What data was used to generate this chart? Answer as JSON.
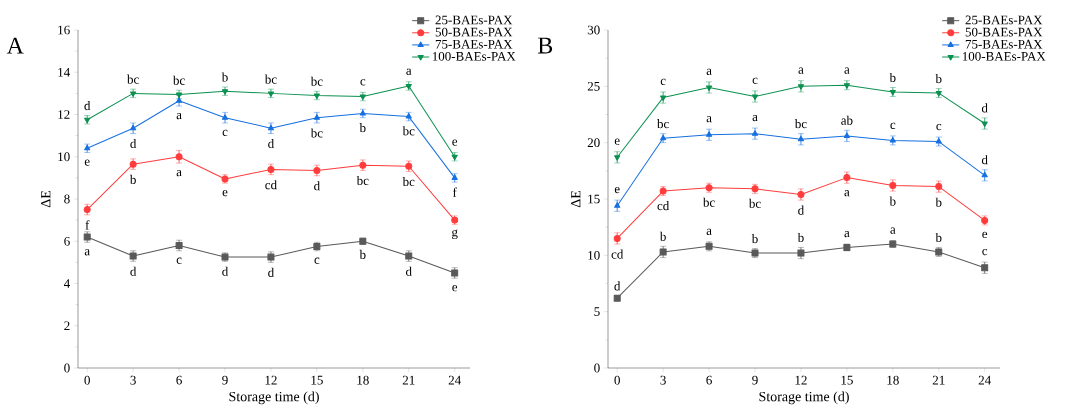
{
  "chart_data": [
    {
      "type": "line",
      "title": "A",
      "xlabel": "Storage time (d)",
      "ylabel": "ΔE",
      "x": [
        0,
        3,
        6,
        9,
        12,
        15,
        18,
        21,
        24
      ],
      "xlim": [
        -0.6,
        25
      ],
      "xticks": [
        0,
        3,
        6,
        9,
        12,
        15,
        18,
        21,
        24
      ],
      "ylim": [
        0,
        16
      ],
      "yticks": [
        0,
        2,
        4,
        6,
        8,
        10,
        12,
        14,
        16
      ],
      "legend": "top right",
      "series": [
        {
          "name": "25-BAEs-PAX",
          "color": "#595959",
          "marker": "square",
          "values": [
            6.2,
            5.3,
            5.8,
            5.25,
            5.25,
            5.75,
            6.0,
            5.3,
            4.5
          ],
          "errors": [
            0.25,
            0.25,
            0.25,
            0.2,
            0.25,
            0.2,
            0.15,
            0.25,
            0.25
          ]
        },
        {
          "name": "50-BAEs-PAX",
          "color": "#ff3b3b",
          "marker": "circle",
          "values": [
            7.5,
            9.65,
            10.0,
            8.95,
            9.4,
            9.35,
            9.6,
            9.55,
            7.0
          ],
          "errors": [
            0.25,
            0.25,
            0.3,
            0.2,
            0.25,
            0.25,
            0.25,
            0.25,
            0.2
          ]
        },
        {
          "name": "75-BAEs-PAX",
          "color": "#1670e0",
          "marker": "triangle",
          "values": [
            10.4,
            11.35,
            12.65,
            11.85,
            11.35,
            11.85,
            12.05,
            11.9,
            9.0
          ],
          "errors": [
            0.2,
            0.25,
            0.25,
            0.25,
            0.25,
            0.25,
            0.2,
            0.2,
            0.2
          ]
        },
        {
          "name": "100-BAEs-PAX",
          "color": "#0c9150",
          "marker": "triangle-down",
          "values": [
            11.75,
            13.0,
            12.95,
            13.1,
            13.0,
            12.9,
            12.85,
            13.35,
            10.0
          ],
          "errors": [
            0.2,
            0.2,
            0.2,
            0.2,
            0.2,
            0.2,
            0.2,
            0.2,
            0.2
          ]
        }
      ],
      "annotations": [
        {
          "text": "a",
          "x": 0,
          "y": 6.2
        },
        {
          "text": "d",
          "x": 3,
          "y": 5.3
        },
        {
          "text": "c",
          "x": 6,
          "y": 5.8
        },
        {
          "text": "d",
          "x": 9,
          "y": 5.25
        },
        {
          "text": "d",
          "x": 12,
          "y": 5.25
        },
        {
          "text": "c",
          "x": 15,
          "y": 5.75
        },
        {
          "text": "b",
          "x": 18,
          "y": 6.0
        },
        {
          "text": "d",
          "x": 21,
          "y": 5.3
        },
        {
          "text": "e",
          "x": 24,
          "y": 4.5
        },
        {
          "text": "f",
          "x": 0,
          "y": 7.5
        },
        {
          "text": "b",
          "x": 3,
          "y": 9.65
        },
        {
          "text": "a",
          "x": 6,
          "y": 10.0
        },
        {
          "text": "e",
          "x": 9,
          "y": 8.95
        },
        {
          "text": "cd",
          "x": 12,
          "y": 9.4
        },
        {
          "text": "d",
          "x": 15,
          "y": 9.35
        },
        {
          "text": "bc",
          "x": 18,
          "y": 9.6
        },
        {
          "text": "bc",
          "x": 21,
          "y": 9.55
        },
        {
          "text": "g",
          "x": 24,
          "y": 7.0
        },
        {
          "text": "e",
          "x": 0,
          "y": 10.4
        },
        {
          "text": "d",
          "x": 3,
          "y": 11.35
        },
        {
          "text": "a",
          "x": 6,
          "y": 12.65
        },
        {
          "text": "c",
          "x": 9,
          "y": 11.85
        },
        {
          "text": "d",
          "x": 12,
          "y": 11.35
        },
        {
          "text": "bc",
          "x": 15,
          "y": 11.85
        },
        {
          "text": "b",
          "x": 18,
          "y": 12.05
        },
        {
          "text": "bc",
          "x": 21,
          "y": 11.9
        },
        {
          "text": "f",
          "x": 24,
          "y": 9.0
        },
        {
          "text": "d",
          "x": 0,
          "y": 11.75
        },
        {
          "text": "bc",
          "x": 3,
          "y": 13.0
        },
        {
          "text": "bc",
          "x": 6,
          "y": 12.95
        },
        {
          "text": "b",
          "x": 9,
          "y": 13.1
        },
        {
          "text": "bc",
          "x": 12,
          "y": 13.0
        },
        {
          "text": "bc",
          "x": 15,
          "y": 12.9
        },
        {
          "text": "c",
          "x": 18,
          "y": 12.85
        },
        {
          "text": "a",
          "x": 21,
          "y": 13.35
        },
        {
          "text": "e",
          "x": 24,
          "y": 10.0
        }
      ]
    },
    {
      "type": "line",
      "title": "B",
      "xlabel": "Storage time (d)",
      "ylabel": "ΔE",
      "x": [
        0,
        3,
        6,
        9,
        12,
        15,
        18,
        21,
        24
      ],
      "xlim": [
        -0.6,
        25
      ],
      "xticks": [
        0,
        3,
        6,
        9,
        12,
        15,
        18,
        21,
        24
      ],
      "ylim": [
        0,
        30
      ],
      "yticks": [
        0,
        5,
        10,
        15,
        20,
        25,
        30
      ],
      "legend": "top right",
      "series": [
        {
          "name": "25-BAEs-PAX",
          "color": "#595959",
          "marker": "square",
          "values": [
            6.2,
            10.3,
            10.8,
            10.2,
            10.2,
            10.7,
            11.0,
            10.3,
            8.9
          ],
          "errors": [
            0.2,
            0.5,
            0.4,
            0.4,
            0.5,
            0.3,
            0.3,
            0.4,
            0.5
          ]
        },
        {
          "name": "50-BAEs-PAX",
          "color": "#ff3b3b",
          "marker": "circle",
          "values": [
            11.5,
            15.7,
            16.0,
            15.9,
            15.4,
            16.9,
            16.2,
            16.1,
            13.1
          ],
          "errors": [
            0.5,
            0.4,
            0.4,
            0.4,
            0.5,
            0.5,
            0.5,
            0.5,
            0.4
          ]
        },
        {
          "name": "75-BAEs-PAX",
          "color": "#1670e0",
          "marker": "triangle",
          "values": [
            14.4,
            20.4,
            20.7,
            20.8,
            20.3,
            20.6,
            20.2,
            20.1,
            17.1
          ],
          "errors": [
            0.5,
            0.4,
            0.5,
            0.5,
            0.5,
            0.5,
            0.4,
            0.4,
            0.5
          ]
        },
        {
          "name": "100-BAEs-PAX",
          "color": "#0c9150",
          "marker": "triangle-down",
          "values": [
            18.7,
            24.0,
            24.9,
            24.1,
            25.0,
            25.1,
            24.5,
            24.4,
            21.7
          ],
          "errors": [
            0.5,
            0.5,
            0.5,
            0.5,
            0.5,
            0.4,
            0.4,
            0.4,
            0.5
          ]
        }
      ],
      "annotations": [
        {
          "text": "d",
          "x": 0,
          "y": 6.2
        },
        {
          "text": "b",
          "x": 3,
          "y": 10.3
        },
        {
          "text": "a",
          "x": 6,
          "y": 10.8
        },
        {
          "text": "b",
          "x": 9,
          "y": 10.2
        },
        {
          "text": "b",
          "x": 12,
          "y": 10.2
        },
        {
          "text": "a",
          "x": 15,
          "y": 10.7
        },
        {
          "text": "a",
          "x": 18,
          "y": 11.0
        },
        {
          "text": "b",
          "x": 21,
          "y": 10.3
        },
        {
          "text": "c",
          "x": 24,
          "y": 8.9
        },
        {
          "text": "cd",
          "x": 0,
          "y": 11.5
        },
        {
          "text": "cd",
          "x": 3,
          "y": 15.7
        },
        {
          "text": "bc",
          "x": 6,
          "y": 16.0
        },
        {
          "text": "bc",
          "x": 9,
          "y": 15.9
        },
        {
          "text": "d",
          "x": 12,
          "y": 15.4
        },
        {
          "text": "a",
          "x": 15,
          "y": 16.9
        },
        {
          "text": "b",
          "x": 18,
          "y": 16.2
        },
        {
          "text": "b",
          "x": 21,
          "y": 16.1
        },
        {
          "text": "e",
          "x": 24,
          "y": 13.1
        },
        {
          "text": "e",
          "x": 0,
          "y": 14.4
        },
        {
          "text": "bc",
          "x": 3,
          "y": 20.4
        },
        {
          "text": "a",
          "x": 6,
          "y": 20.7
        },
        {
          "text": "a",
          "x": 9,
          "y": 20.8
        },
        {
          "text": "bc",
          "x": 12,
          "y": 20.3
        },
        {
          "text": "ab",
          "x": 15,
          "y": 20.6
        },
        {
          "text": "c",
          "x": 18,
          "y": 20.2
        },
        {
          "text": "c",
          "x": 21,
          "y": 20.1
        },
        {
          "text": "d",
          "x": 24,
          "y": 17.1
        },
        {
          "text": "e",
          "x": 0,
          "y": 18.7
        },
        {
          "text": "c",
          "x": 3,
          "y": 24.0
        },
        {
          "text": "a",
          "x": 6,
          "y": 24.9
        },
        {
          "text": "c",
          "x": 9,
          "y": 24.1
        },
        {
          "text": "a",
          "x": 12,
          "y": 25.0
        },
        {
          "text": "a",
          "x": 15,
          "y": 25.1
        },
        {
          "text": "b",
          "x": 18,
          "y": 24.5
        },
        {
          "text": "b",
          "x": 21,
          "y": 24.4
        },
        {
          "text": "d",
          "x": 24,
          "y": 21.7
        }
      ]
    }
  ]
}
